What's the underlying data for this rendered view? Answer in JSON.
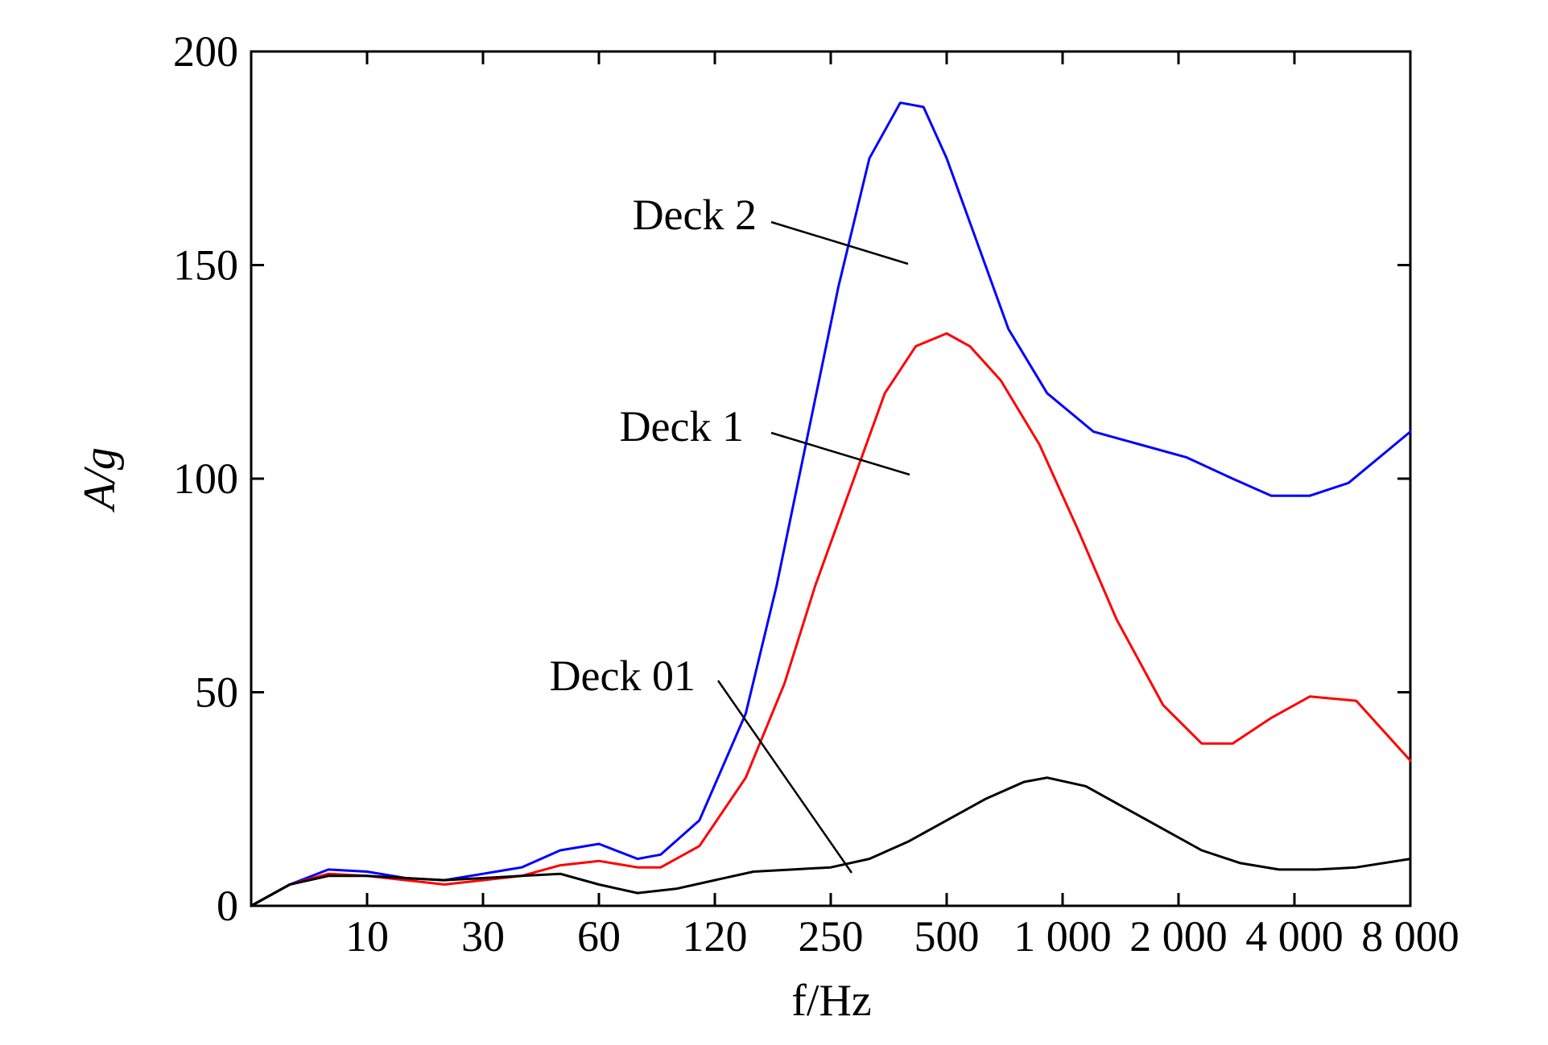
{
  "chart_data": {
    "type": "line",
    "xlabel": "f/Hz",
    "ylabel": "A/g",
    "x_scale": "categorical-log-like",
    "x_ticks": [
      "10",
      "30",
      "60",
      "120",
      "250",
      "500",
      "1 000",
      "2 000",
      "4 000",
      "8 000"
    ],
    "ylim": [
      0,
      200
    ],
    "y_ticks": [
      0,
      50,
      100,
      150,
      200
    ],
    "grid": false,
    "series": [
      {
        "name": "Deck 2",
        "color": "#0000ff",
        "points": [
          [
            0,
            0
          ],
          [
            0.5,
            5
          ],
          [
            1,
            8.5
          ],
          [
            1.5,
            8
          ],
          [
            2,
            6.5
          ],
          [
            2.5,
            6
          ],
          [
            3,
            7.5
          ],
          [
            3.5,
            9
          ],
          [
            4,
            13
          ],
          [
            4.5,
            14.5
          ],
          [
            5,
            11
          ],
          [
            5.3,
            12
          ],
          [
            5.8,
            20
          ],
          [
            6.4,
            45
          ],
          [
            6.8,
            75
          ],
          [
            7.2,
            110
          ],
          [
            7.6,
            145
          ],
          [
            8,
            175
          ],
          [
            8.4,
            188
          ],
          [
            8.7,
            187
          ],
          [
            9,
            175
          ],
          [
            9.4,
            155
          ],
          [
            9.8,
            135
          ],
          [
            10.3,
            120
          ],
          [
            10.9,
            111
          ],
          [
            11.5,
            108
          ],
          [
            12.1,
            105
          ],
          [
            12.7,
            100
          ],
          [
            13.2,
            96
          ],
          [
            13.7,
            96
          ],
          [
            14.2,
            99
          ],
          [
            15,
            111
          ]
        ]
      },
      {
        "name": "Deck 1",
        "color": "#ff0000",
        "points": [
          [
            0,
            0
          ],
          [
            0.5,
            5
          ],
          [
            1,
            7.5
          ],
          [
            1.5,
            7
          ],
          [
            2,
            6
          ],
          [
            2.5,
            5
          ],
          [
            3,
            6
          ],
          [
            3.5,
            7
          ],
          [
            4,
            9.5
          ],
          [
            4.5,
            10.5
          ],
          [
            5,
            9
          ],
          [
            5.3,
            9
          ],
          [
            5.8,
            14
          ],
          [
            6.4,
            30
          ],
          [
            6.9,
            52
          ],
          [
            7.3,
            75
          ],
          [
            7.8,
            100
          ],
          [
            8.2,
            120
          ],
          [
            8.6,
            131
          ],
          [
            9,
            134
          ],
          [
            9.3,
            131
          ],
          [
            9.7,
            123
          ],
          [
            10.2,
            108
          ],
          [
            10.7,
            88
          ],
          [
            11.2,
            67
          ],
          [
            11.8,
            47
          ],
          [
            12.3,
            38
          ],
          [
            12.7,
            38
          ],
          [
            13.2,
            44
          ],
          [
            13.7,
            49
          ],
          [
            14.3,
            48
          ],
          [
            15,
            34
          ]
        ]
      },
      {
        "name": "Deck 01",
        "color": "#000000",
        "points": [
          [
            0,
            0
          ],
          [
            0.5,
            5
          ],
          [
            1,
            7
          ],
          [
            1.5,
            7
          ],
          [
            2,
            6.5
          ],
          [
            2.5,
            6
          ],
          [
            3,
            6.5
          ],
          [
            3.5,
            7
          ],
          [
            4,
            7.5
          ],
          [
            4.5,
            5
          ],
          [
            5,
            3
          ],
          [
            5.5,
            4
          ],
          [
            6,
            6
          ],
          [
            6.5,
            8
          ],
          [
            7,
            8.5
          ],
          [
            7.5,
            9
          ],
          [
            8,
            11
          ],
          [
            8.5,
            15
          ],
          [
            9,
            20
          ],
          [
            9.5,
            25
          ],
          [
            10,
            29
          ],
          [
            10.3,
            30
          ],
          [
            10.8,
            28
          ],
          [
            11.3,
            23
          ],
          [
            11.8,
            18
          ],
          [
            12.3,
            13
          ],
          [
            12.8,
            10
          ],
          [
            13.3,
            8.5
          ],
          [
            13.8,
            8.5
          ],
          [
            14.3,
            9
          ],
          [
            15,
            11
          ]
        ]
      }
    ],
    "annotations": [
      "Deck 2",
      "Deck 1",
      "Deck 01"
    ]
  }
}
